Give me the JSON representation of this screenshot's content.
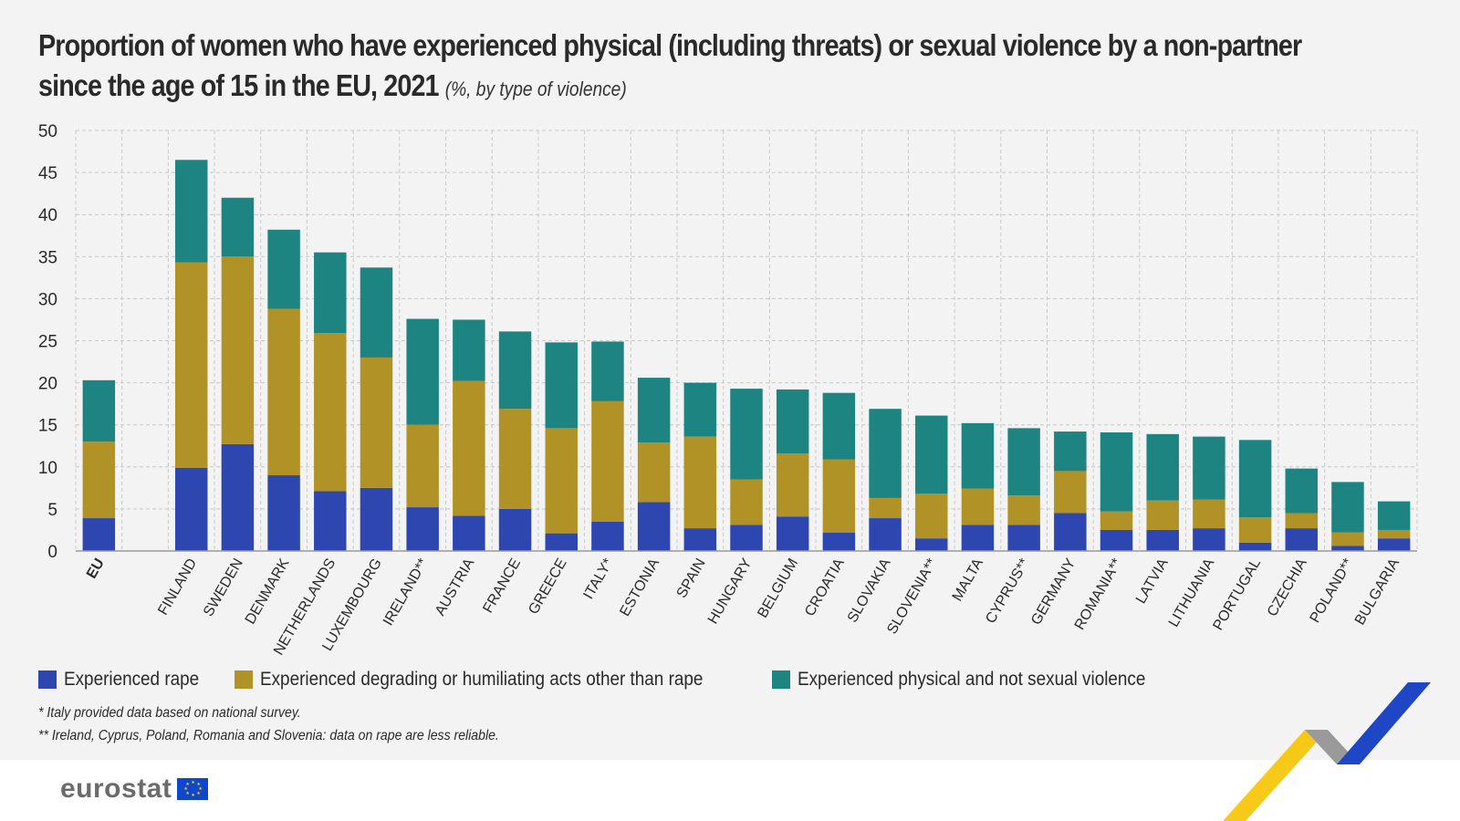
{
  "title": "Proportion of women who have experienced physical (including threats) or sexual violence by a non-partner",
  "title_line2": "since the age of 15 in the EU, 2021",
  "subtitle": "(%, by type of violence)",
  "colors": {
    "rape": "#2d46b0",
    "degrading": "#b09227",
    "physical": "#1e8482",
    "grid": "#c8c8c8",
    "axis": "#999999",
    "text": "#2a2a2a"
  },
  "chart_data": {
    "type": "bar",
    "stacked": true,
    "categories": [
      "EU",
      "FINLAND",
      "SWEDEN",
      "DENMARK",
      "NETHERLANDS",
      "LUXEMBOURG",
      "IRELAND**",
      "AUSTRIA",
      "FRANCE",
      "GREECE",
      "ITALY*",
      "ESTONIA",
      "SPAIN",
      "HUNGARY",
      "BELGIUM",
      "CROATIA",
      "SLOVAKIA",
      "SLOVENIA**",
      "MALTA",
      "CYPRUS**",
      "GERMANY",
      "ROMANIA**",
      "LATVIA",
      "LITHUANIA",
      "PORTUGAL",
      "CZECHIA",
      "POLAND**",
      "BULGARIA"
    ],
    "series": [
      {
        "name": "Experienced rape",
        "values": [
          3.9,
          9.9,
          12.7,
          9.0,
          7.1,
          7.5,
          5.2,
          4.2,
          5.0,
          2.1,
          3.5,
          5.8,
          2.7,
          3.1,
          4.1,
          2.2,
          3.9,
          1.5,
          3.1,
          3.1,
          4.5,
          2.5,
          2.5,
          2.7,
          1.0,
          2.7,
          0.6,
          1.5
        ]
      },
      {
        "name": "Experienced degrading or humiliating acts other than rape",
        "values": [
          9.1,
          24.4,
          22.3,
          19.8,
          18.8,
          15.5,
          9.8,
          16.0,
          11.9,
          12.5,
          14.3,
          7.1,
          10.9,
          5.4,
          7.5,
          8.7,
          2.4,
          5.3,
          4.3,
          3.5,
          5.0,
          2.2,
          3.5,
          3.4,
          3.0,
          1.8,
          1.6,
          1.0
        ]
      },
      {
        "name": "Experienced physical and not sexual violence",
        "values": [
          7.3,
          12.2,
          7.0,
          9.4,
          9.6,
          10.7,
          12.6,
          7.3,
          9.2,
          10.2,
          7.1,
          7.7,
          6.4,
          10.8,
          7.6,
          7.9,
          10.6,
          9.3,
          7.8,
          8.0,
          4.7,
          9.4,
          7.9,
          7.5,
          9.2,
          5.3,
          6.0,
          3.4
        ]
      }
    ],
    "ylim": [
      0,
      50
    ],
    "yticks": [
      0,
      5,
      10,
      15,
      20,
      25,
      30,
      35,
      40,
      45,
      50
    ],
    "grid": true,
    "legend_position": "bottom-left"
  },
  "footnotes": [
    "* Italy provided data based on national survey.",
    "** Ireland, Cyprus, Poland, Romania and Slovenia: data on rape are less reliable."
  ],
  "logo_text": "eurostat"
}
